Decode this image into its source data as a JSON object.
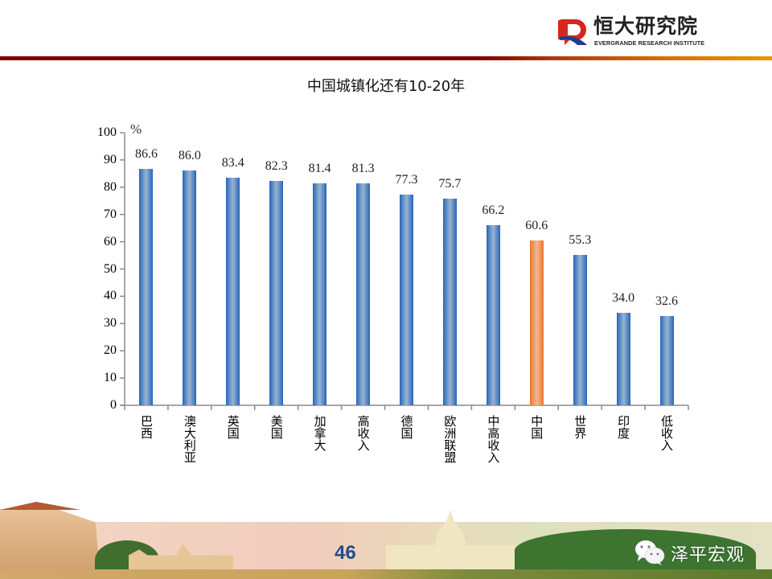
{
  "header": {
    "logo_cn": "恒大研究院",
    "logo_en": "EVERGRANDE RESEARCH INSTITUTE",
    "bar_colors": [
      "#800000",
      "#ef9300"
    ]
  },
  "footer": {
    "page_number": "46",
    "brand": "泽平宏观",
    "brand_icon": "wechat-icon"
  },
  "chart_data": {
    "type": "bar",
    "title": "中国城镇化还有10-20年",
    "xlabel": "",
    "ylabel": "%",
    "ylim": [
      0,
      100
    ],
    "yticks": [
      0,
      10,
      20,
      30,
      40,
      50,
      60,
      70,
      80,
      90,
      100
    ],
    "grid": false,
    "legend": null,
    "categories": [
      "巴西",
      "澳大利亚",
      "英国",
      "美国",
      "加拿大",
      "高收入",
      "德国",
      "欧洲联盟",
      "中高收入",
      "中国",
      "世界",
      "印度",
      "低收入"
    ],
    "values": [
      86.6,
      86.0,
      83.4,
      82.3,
      81.4,
      81.3,
      77.3,
      75.7,
      66.2,
      60.6,
      55.3,
      34.0,
      32.6
    ],
    "value_labels": [
      "86.6",
      "86.0",
      "83.4",
      "82.3",
      "81.4",
      "81.3",
      "77.3",
      "75.7",
      "66.2",
      "60.6",
      "55.3",
      "34.0",
      "32.6"
    ],
    "highlight_index": 9,
    "colors": {
      "default": "#4f84c6",
      "highlight": "#ee8f54"
    }
  }
}
